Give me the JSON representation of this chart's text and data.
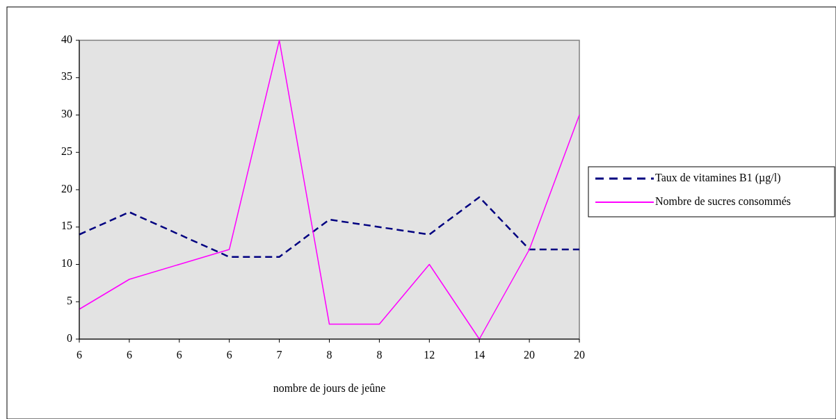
{
  "chart_data": {
    "type": "line",
    "xlabel": "nombre de jours de jeûne",
    "categories": [
      "6",
      "6",
      "6",
      "6",
      "7",
      "8",
      "8",
      "12",
      "14",
      "20",
      "20"
    ],
    "series": [
      {
        "name": "Taux de vitamines B1 (µg/l)",
        "color": "#000080",
        "line_style": "dashed",
        "values": [
          14,
          17,
          14,
          11,
          11,
          16,
          15,
          14,
          19,
          12,
          12
        ]
      },
      {
        "name": "Nombre de sucres consommés",
        "color": "#ff00ff",
        "line_style": "solid",
        "values": [
          4,
          8,
          10,
          12,
          40,
          2,
          2,
          10,
          0,
          12,
          30
        ]
      }
    ],
    "ylim": [
      0,
      40
    ],
    "yticks": [
      0,
      5,
      10,
      15,
      20,
      25,
      30,
      35,
      40
    ],
    "grid": false,
    "legend": "right",
    "marker": "none"
  }
}
